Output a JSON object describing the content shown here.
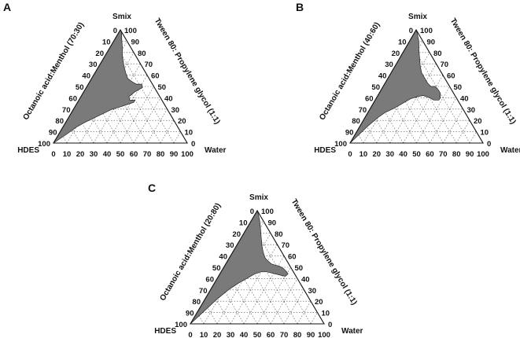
{
  "chart_data": [
    {
      "type": "ternary",
      "panel": "A",
      "vertices": {
        "top": "Smix",
        "left": "HDES",
        "right": "Water"
      },
      "left_axis_label": "Octanoic acid:Menthol (70:30)",
      "right_axis_label": "Tween 80: Propylene glycol (1:1)",
      "ticks": {
        "left_side": [
          "0",
          "10",
          "20",
          "30",
          "40",
          "50",
          "60",
          "70",
          "80",
          "90",
          "100"
        ],
        "right_side": [
          "100",
          "90",
          "80",
          "70",
          "60",
          "50",
          "40",
          "30",
          "20",
          "10",
          "0"
        ],
        "bottom": [
          "0",
          "10",
          "20",
          "30",
          "40",
          "50",
          "60",
          "70",
          "80",
          "90",
          "100"
        ]
      },
      "grid": true,
      "region": {
        "description_fill": "#7a7a7a",
        "points_water_smix": [
          [
            0,
            100
          ],
          [
            2,
            98
          ],
          [
            5,
            92
          ],
          [
            9,
            85
          ],
          [
            13,
            77
          ],
          [
            18,
            69
          ],
          [
            23,
            62
          ],
          [
            27,
            57
          ],
          [
            32,
            54
          ],
          [
            36,
            52
          ],
          [
            40,
            52
          ],
          [
            42,
            49
          ],
          [
            38,
            45
          ],
          [
            36,
            41
          ],
          [
            38,
            38
          ],
          [
            42,
            38
          ],
          [
            42,
            36
          ],
          [
            38,
            34
          ],
          [
            34,
            32
          ],
          [
            29,
            30
          ],
          [
            24,
            26
          ],
          [
            19,
            22
          ],
          [
            14,
            18
          ],
          [
            10,
            14
          ],
          [
            6,
            8
          ],
          [
            0,
            0
          ]
        ]
      }
    },
    {
      "type": "ternary",
      "panel": "B",
      "vertices": {
        "top": "Smix",
        "left": "HDES",
        "right": "Water"
      },
      "left_axis_label": "Octanoic acid:Menthol (40:60)",
      "right_axis_label": "Tween 80: Propylene glycol (1:1)",
      "ticks": {
        "left_side": [
          "0",
          "10",
          "20",
          "30",
          "40",
          "50",
          "60",
          "70",
          "80",
          "90",
          "100"
        ],
        "right_side": [
          "100",
          "90",
          "80",
          "70",
          "60",
          "50",
          "40",
          "30",
          "20",
          "10",
          "0"
        ],
        "bottom": [
          "0",
          "10",
          "20",
          "30",
          "40",
          "50",
          "60",
          "70",
          "80",
          "90",
          "100"
        ]
      },
      "grid": true,
      "region": {
        "description_fill": "#7a7a7a",
        "points_water_smix": [
          [
            0,
            100
          ],
          [
            3,
            96
          ],
          [
            7,
            90
          ],
          [
            11,
            82
          ],
          [
            15,
            75
          ],
          [
            19,
            68
          ],
          [
            23,
            62
          ],
          [
            28,
            57
          ],
          [
            32,
            53
          ],
          [
            36,
            50
          ],
          [
            39,
            50
          ],
          [
            43,
            47
          ],
          [
            46,
            44
          ],
          [
            48,
            40
          ],
          [
            48,
            38
          ],
          [
            44,
            38
          ],
          [
            40,
            40
          ],
          [
            34,
            42
          ],
          [
            30,
            41
          ],
          [
            26,
            39
          ],
          [
            22,
            35
          ],
          [
            18,
            31
          ],
          [
            13,
            27
          ],
          [
            10,
            23
          ],
          [
            6,
            15
          ],
          [
            0,
            0
          ]
        ]
      }
    },
    {
      "type": "ternary",
      "panel": "C",
      "vertices": {
        "top": "Smix",
        "left": "HDES",
        "right": "Water"
      },
      "left_axis_label": "Octanoic acid:Menthol (20:80)",
      "right_axis_label": "Tween 80: Propylene glycol (1:1)",
      "ticks": {
        "left_side": [
          "0",
          "10",
          "20",
          "30",
          "40",
          "50",
          "60",
          "70",
          "80",
          "90",
          "100"
        ],
        "right_side": [
          "100",
          "90",
          "80",
          "70",
          "60",
          "50",
          "40",
          "30",
          "20",
          "10",
          "0"
        ],
        "bottom": [
          "0",
          "10",
          "20",
          "30",
          "40",
          "50",
          "60",
          "70",
          "80",
          "90",
          "100"
        ]
      },
      "grid": true,
      "region": {
        "description_fill": "#7a7a7a",
        "points_water_smix": [
          [
            0,
            100
          ],
          [
            3,
            96
          ],
          [
            7,
            90
          ],
          [
            11,
            83
          ],
          [
            15,
            76
          ],
          [
            19,
            69
          ],
          [
            23,
            63
          ],
          [
            27,
            58
          ],
          [
            31,
            55
          ],
          [
            34,
            53
          ],
          [
            37,
            52
          ],
          [
            41,
            51
          ],
          [
            45,
            49
          ],
          [
            49,
            46
          ],
          [
            51,
            44
          ],
          [
            50,
            42
          ],
          [
            46,
            43
          ],
          [
            42,
            44
          ],
          [
            38,
            45
          ],
          [
            34,
            46
          ],
          [
            30,
            46
          ],
          [
            26,
            44
          ],
          [
            22,
            40
          ],
          [
            18,
            36
          ],
          [
            14,
            31
          ],
          [
            9,
            22
          ],
          [
            5,
            12
          ],
          [
            0,
            0
          ]
        ]
      }
    }
  ]
}
